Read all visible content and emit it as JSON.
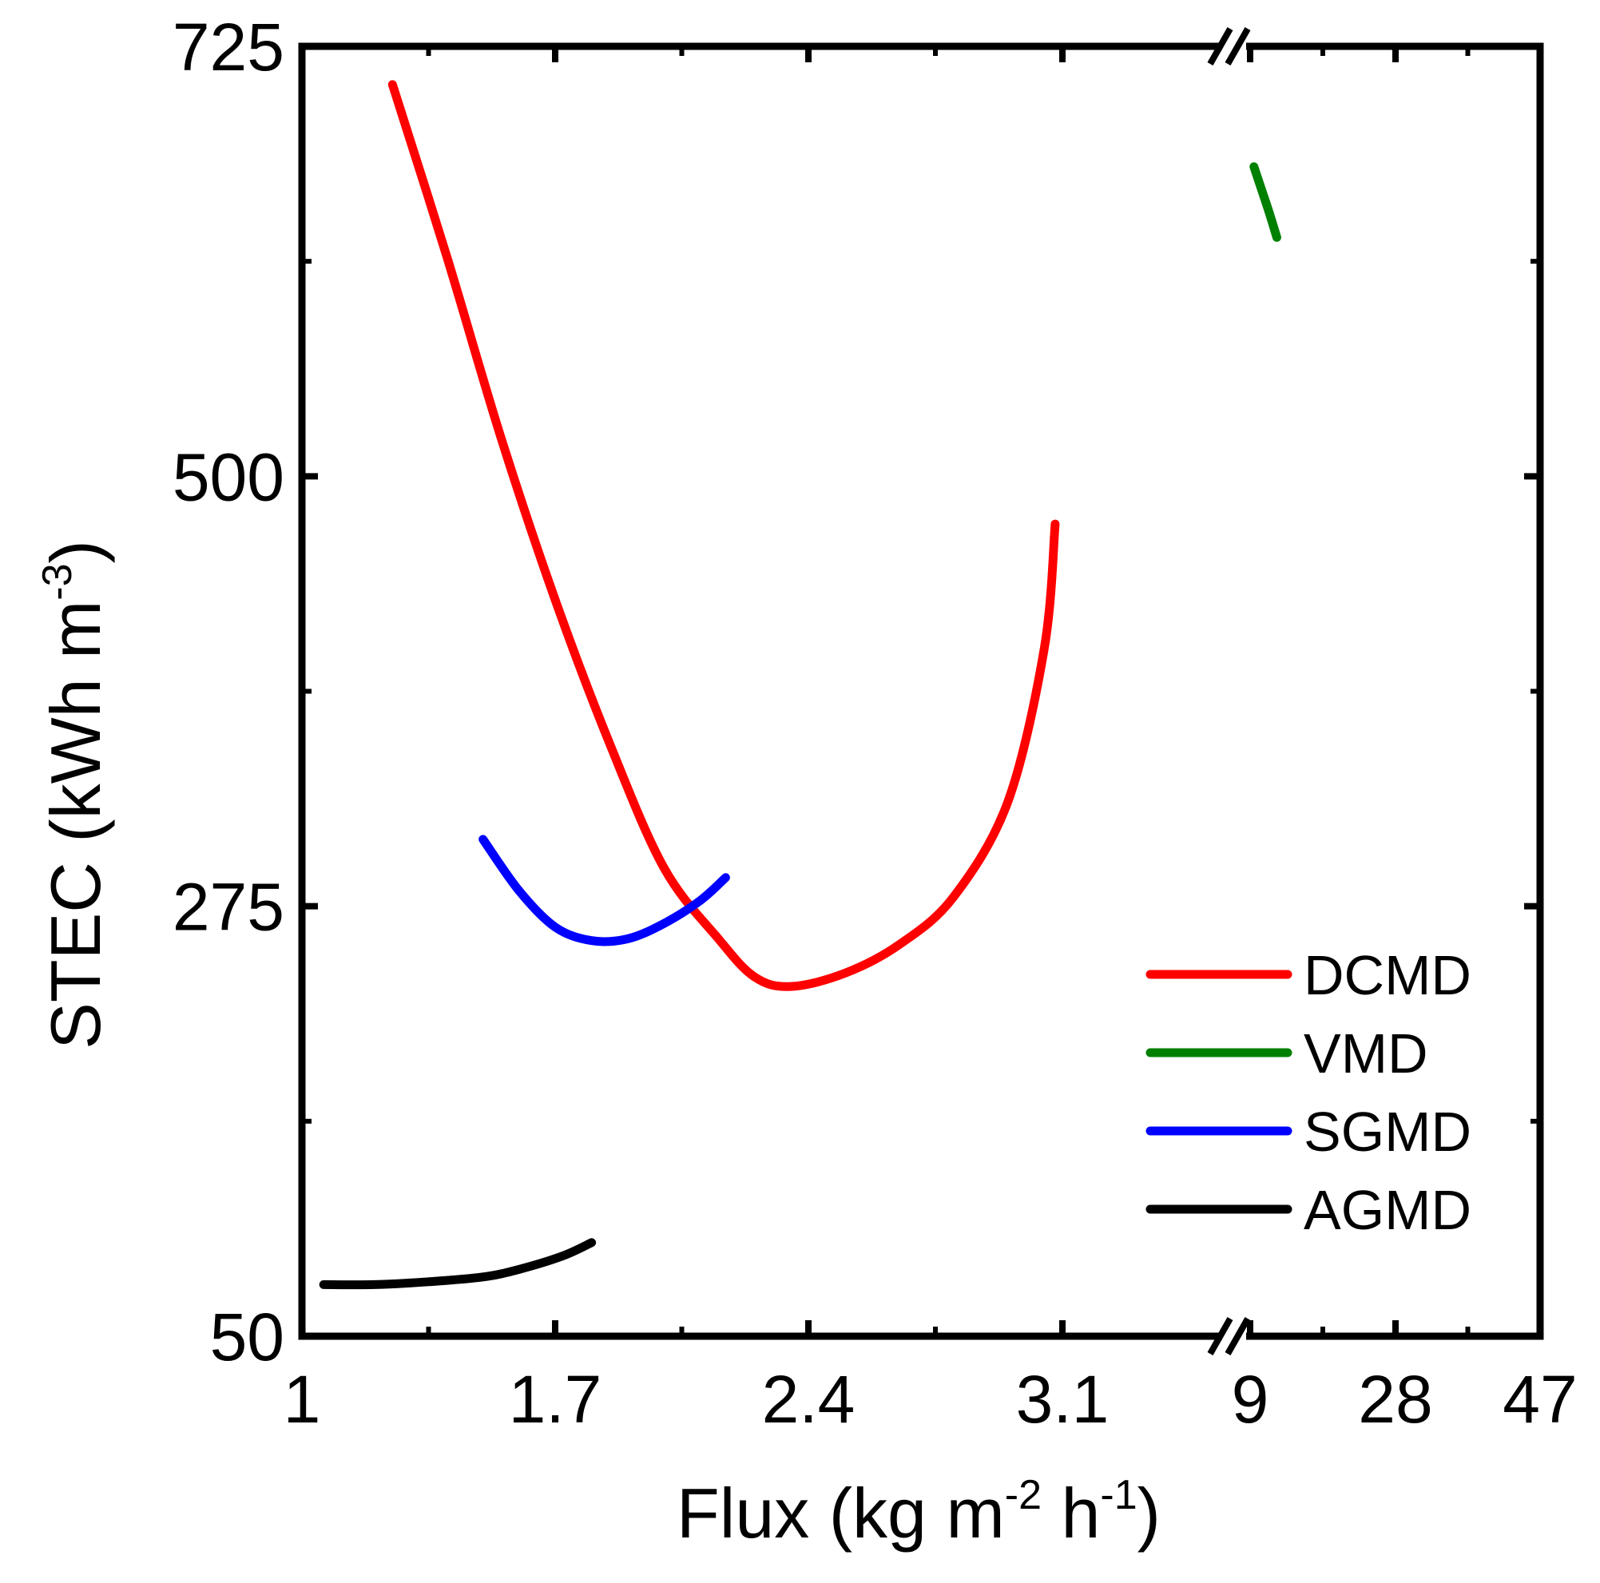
{
  "chart_data": {
    "type": "line",
    "title": "",
    "xlabel": {
      "text": "Flux (kg m",
      "sup1": "-2",
      "mid": " h",
      "sup2": "-1",
      "end": ")"
    },
    "ylabel": {
      "text": "STEC (kWh m",
      "sup": "-3",
      "end": ")"
    },
    "ylim": [
      50,
      725
    ],
    "yticks": [
      50,
      275,
      500,
      725
    ],
    "ytick_labels": [
      "50",
      "275",
      "500",
      "725"
    ],
    "x_axis_broken": true,
    "x_segments": [
      {
        "range": [
          1,
          3.1
        ],
        "ticks": [
          1,
          1.7,
          2.4,
          3.1
        ],
        "tick_labels": [
          "1",
          "1.7",
          "2.4",
          "3.1"
        ]
      },
      {
        "range": [
          9,
          47
        ],
        "ticks": [
          9,
          28,
          47
        ],
        "tick_labels": [
          "9",
          "28",
          "47"
        ]
      }
    ],
    "legend_position": "lower-right",
    "series": [
      {
        "name": "DCMD",
        "color": "#ff0000",
        "points": [
          [
            1.25,
            705
          ],
          [
            1.4,
            615
          ],
          [
            1.55,
            520
          ],
          [
            1.7,
            435
          ],
          [
            1.85,
            360
          ],
          [
            2.0,
            295
          ],
          [
            2.15,
            258
          ],
          [
            2.25,
            238
          ],
          [
            2.35,
            233
          ],
          [
            2.5,
            240
          ],
          [
            2.65,
            255
          ],
          [
            2.8,
            280
          ],
          [
            2.95,
            330
          ],
          [
            3.05,
            410
          ],
          [
            3.08,
            475
          ]
        ]
      },
      {
        "name": "VMD",
        "color": "#008000",
        "points": [
          [
            9.5,
            662
          ],
          [
            10.5,
            650
          ],
          [
            11.5,
            638
          ],
          [
            12.5,
            625
          ]
        ]
      },
      {
        "name": "SGMD",
        "color": "#0000ff",
        "points": [
          [
            1.5,
            310
          ],
          [
            1.6,
            283
          ],
          [
            1.7,
            264
          ],
          [
            1.8,
            257
          ],
          [
            1.9,
            258
          ],
          [
            2.0,
            266
          ],
          [
            2.1,
            278
          ],
          [
            2.17,
            290
          ]
        ]
      },
      {
        "name": "AGMD",
        "color": "#000000",
        "points": [
          [
            1.06,
            77
          ],
          [
            1.2,
            77
          ],
          [
            1.35,
            78.5
          ],
          [
            1.5,
            81
          ],
          [
            1.6,
            85
          ],
          [
            1.72,
            92
          ],
          [
            1.8,
            99
          ]
        ]
      }
    ]
  }
}
